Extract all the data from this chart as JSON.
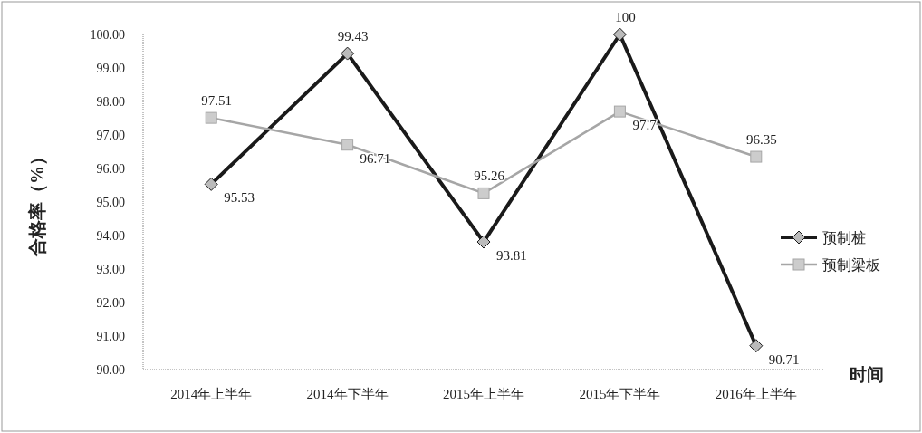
{
  "chart_data": {
    "type": "line",
    "ylabel": "合格率（%）",
    "xlabel": "时间",
    "categories": [
      "2014年上半年",
      "2014年下半年",
      "2015年上半年",
      "2015年下半年",
      "2016年上半年"
    ],
    "series": [
      {
        "name": "预制桩",
        "color": "#1a1a1a",
        "marker": "diamond",
        "values": [
          95.53,
          99.43,
          93.81,
          100,
          90.71
        ]
      },
      {
        "name": "预制梁板",
        "color": "#a6a6a6",
        "marker": "square",
        "values": [
          97.51,
          96.71,
          95.26,
          97.7,
          96.35
        ]
      }
    ],
    "ylim": [
      90,
      100
    ],
    "yticks": [
      {
        "value": 90,
        "label": "90.00"
      },
      {
        "value": 91,
        "label": "91.00"
      },
      {
        "value": 92,
        "label": "92.00"
      },
      {
        "value": 93,
        "label": "93.00"
      },
      {
        "value": 94,
        "label": "94.00"
      },
      {
        "value": 95,
        "label": "95.00"
      },
      {
        "value": 96,
        "label": "96.00"
      },
      {
        "value": 97,
        "label": "97.00"
      },
      {
        "value": 98,
        "label": "98.00"
      },
      {
        "value": 99,
        "label": "99.00"
      },
      {
        "value": 100,
        "label": "100.00"
      }
    ],
    "data_labels": true,
    "legend": "right",
    "grid": false
  }
}
